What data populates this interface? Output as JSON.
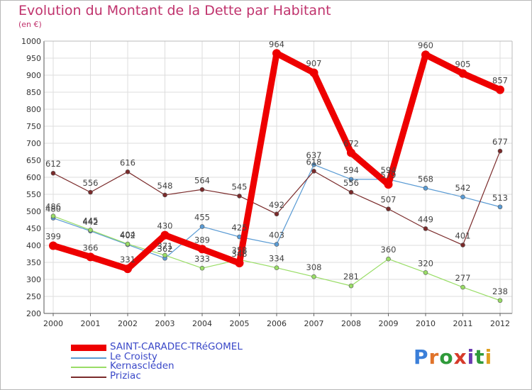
{
  "header": {
    "title": "Evolution du Montant de la Dette par Habitant",
    "subtitle": "(en €)"
  },
  "logo": {
    "text": "Proxiti",
    "letter_colors": [
      "#3b7fd9",
      "#e0732a",
      "#2f9a3a",
      "#d63a2a",
      "#6a3ab0",
      "#2f9a3a",
      "#e0a020"
    ]
  },
  "chart_data": {
    "type": "line",
    "title": "Evolution du Montant de la Dette par Habitant",
    "subtitle": "(en €)",
    "xlabel": "",
    "ylabel": "",
    "categories": [
      "2000",
      "2001",
      "2002",
      "2003",
      "2004",
      "2005",
      "2006",
      "2007",
      "2008",
      "2009",
      "2010",
      "2011",
      "2012"
    ],
    "ylim": [
      200,
      1000
    ],
    "yticks": [
      200,
      250,
      300,
      350,
      400,
      450,
      500,
      550,
      600,
      650,
      700,
      750,
      800,
      850,
      900,
      950,
      1000
    ],
    "grid": true,
    "legend_position": "bottom-left",
    "series": [
      {
        "name": "SAINT-CARADEC-TRéGOMEL",
        "color": "#ee0000",
        "values": [
          399,
          366,
          331,
          430,
          389,
          348,
          964,
          907,
          672,
          579,
          960,
          905,
          857
        ]
      },
      {
        "name": "Le Croisty",
        "color": "#5a9bd4",
        "values": [
          480,
          442,
          402,
          362,
          455,
          425,
          403,
          637,
          594,
          594,
          568,
          542,
          513
        ]
      },
      {
        "name": "Kernascléden",
        "color": "#99dd66",
        "values": [
          486,
          445,
          404,
          371,
          333,
          358,
          334,
          308,
          281,
          360,
          320,
          277,
          238
        ]
      },
      {
        "name": "Priziac",
        "color": "#7a2a2a",
        "values": [
          612,
          556,
          616,
          548,
          564,
          545,
          492,
          618,
          556,
          507,
          449,
          401,
          677
        ]
      }
    ]
  }
}
